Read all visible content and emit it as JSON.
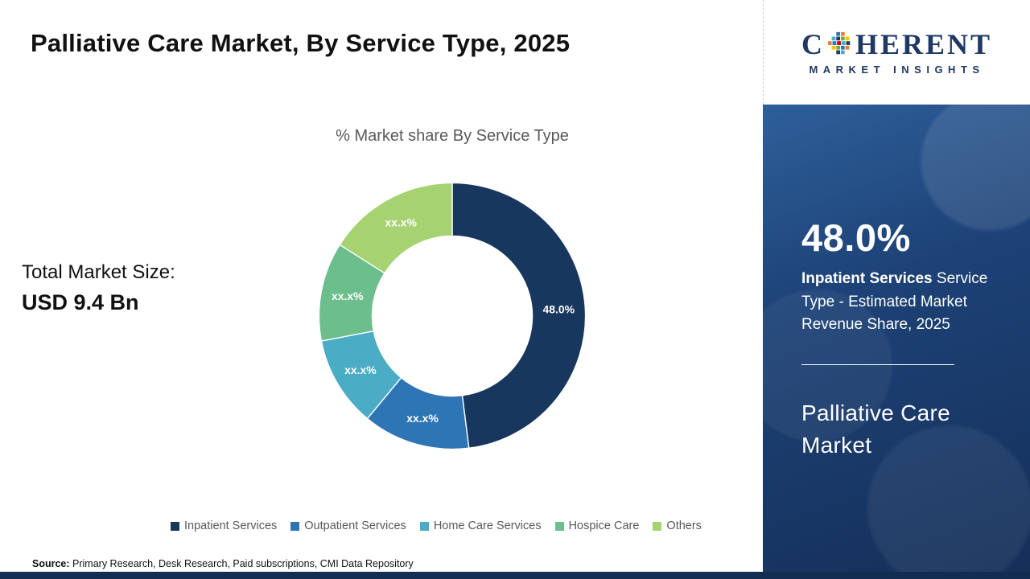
{
  "title": "Palliative Care Market, By Service Type, 2025",
  "logo": {
    "brand_prefix": "C",
    "brand_suffix": "HERENT",
    "brand_sub": "MARKET INSIGHTS"
  },
  "market_size": {
    "label": "Total Market Size:",
    "value": "USD 9.4 Bn"
  },
  "chart_data": {
    "type": "pie",
    "donut": true,
    "title": "% Market share By Service Type",
    "start_angle_deg": 0,
    "direction": "clockwise",
    "categories": [
      "Inpatient Services",
      "Outpatient Services",
      "Home Care Services",
      "Hospice Care",
      "Others"
    ],
    "values": [
      48.0,
      13.0,
      11.0,
      12.0,
      16.0
    ],
    "labels": [
      "48.0%",
      "xx.x%",
      "xx.x%",
      "xx.x%",
      "xx.x%"
    ],
    "colors": [
      "#17375E",
      "#2E75B6",
      "#4BACC6",
      "#6CBE8C",
      "#A6D271"
    ],
    "legend_position": "bottom"
  },
  "legend": [
    {
      "label": "Inpatient Services",
      "color": "#17375E"
    },
    {
      "label": "Outpatient Services",
      "color": "#2E75B6"
    },
    {
      "label": "Home Care Services",
      "color": "#4BACC6"
    },
    {
      "label": "Hospice Care",
      "color": "#6CBE8C"
    },
    {
      "label": "Others",
      "color": "#A6D271"
    }
  ],
  "sidebar": {
    "stat_value": "48.0%",
    "stat_bold": "Inpatient Services",
    "stat_rest": " Service Type - Estimated Market Revenue Share, 2025",
    "product": "Palliative Care Market"
  },
  "source": {
    "label": "Source:",
    "text": " Primary Research, Desk Research, Paid subscriptions, CMI Data Repository"
  }
}
